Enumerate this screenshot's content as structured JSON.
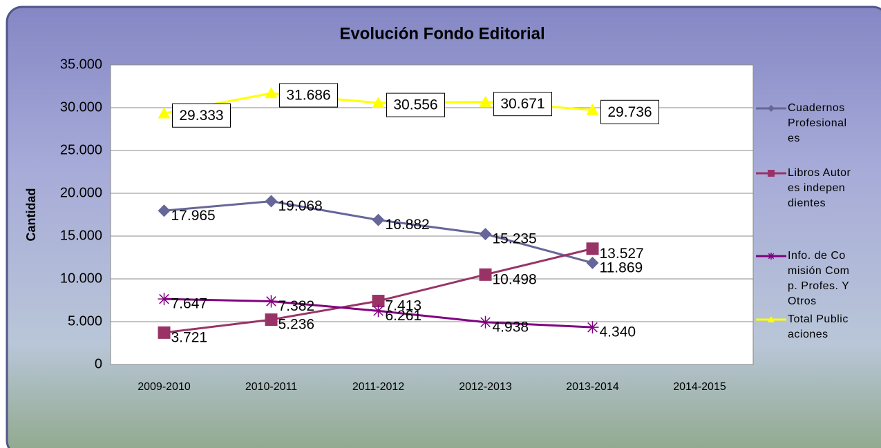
{
  "chart_data": {
    "type": "line",
    "title": "Evolución Fondo Editorial",
    "y_label": "Cantidad",
    "categories": [
      "2009-2010",
      "2010-2011",
      "2011-2012",
      "2012-2013",
      "2013-2014",
      "2014-2015"
    ],
    "ylim": [
      0,
      35000
    ],
    "yticks": [
      0,
      {
        "value": 5000,
        "label": "5.000"
      },
      {
        "value": 10000,
        "label": "10.000"
      },
      {
        "value": 15000,
        "label": "15.000"
      },
      {
        "value": 20000,
        "label": "20.000"
      },
      {
        "value": 25000,
        "label": "25.000"
      },
      {
        "value": 30000,
        "label": "30.000"
      },
      {
        "value": 35000,
        "label": "35.000"
      }
    ],
    "grid": true,
    "legend": "right",
    "series": [
      {
        "name": "Cuadernos Profesionales",
        "color": "#666699",
        "marker": "diamond",
        "label_box": false,
        "values": [
          17965,
          19068,
          16882,
          15235,
          11869,
          null
        ],
        "value_labels": [
          "17.965",
          "19.068",
          "16.882",
          "15.235",
          "11.869",
          null
        ]
      },
      {
        "name": "Libros Autores independientes",
        "color": "#993366",
        "marker": "square",
        "label_box": false,
        "values": [
          3721,
          5236,
          7413,
          10498,
          13527,
          null
        ],
        "value_labels": [
          "3.721",
          "5.236",
          "7.413",
          "10.498",
          "13.527",
          null
        ]
      },
      {
        "name": "Info. de Comisión Comp. Profes. Y Otros",
        "color": "#800080",
        "marker": "star",
        "label_box": false,
        "values": [
          7647,
          7382,
          6261,
          4938,
          4340,
          null
        ],
        "value_labels": [
          "7.647",
          "7.382",
          "6.261",
          "4.938",
          "4.340",
          null
        ]
      },
      {
        "name": "Total Publicaciones",
        "color": "#ffff00",
        "marker": "triangle",
        "label_box": true,
        "values": [
          29333,
          31686,
          30556,
          30671,
          29736,
          null
        ],
        "value_labels": [
          "29.333",
          "31.686",
          "30.556",
          "30.671",
          "29.736",
          null
        ]
      }
    ]
  }
}
